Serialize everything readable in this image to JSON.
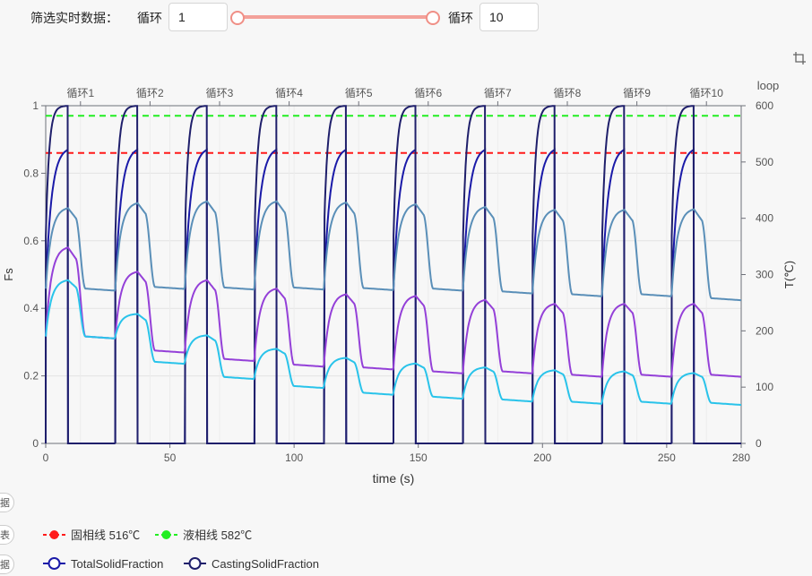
{
  "filter": {
    "label": "筛选实时数据：",
    "loop_label_start": "循环",
    "start_value": "1",
    "loop_label_end": "循环",
    "end_value": "10",
    "slider": {
      "min": 1,
      "max": 10,
      "start": 1,
      "end": 10
    }
  },
  "toolbar": {
    "crop_icon": "crop-icon"
  },
  "side_tabs": [
    "据",
    "表",
    "据"
  ],
  "colors": {
    "solidus": "#ff1a1a",
    "liquidus": "#22ee22",
    "total_solid": "#1a1aa8",
    "casting_solid": "#1f1f6b",
    "temp_upper": "#5a8fb8",
    "temp_mid": "#9440d8",
    "temp_lower": "#29c3ea",
    "slider": "#f3a19a"
  },
  "chart_data": {
    "type": "line",
    "title": "",
    "xlabel": "time (s)",
    "ylabel_left": "Fs",
    "ylabel_right": "T(℃)",
    "top_axis_label": "loop",
    "xlim": [
      0,
      280
    ],
    "ylim_left": [
      0,
      1
    ],
    "ylim_right": [
      0,
      600
    ],
    "x_ticks": [
      0,
      50,
      100,
      150,
      200,
      250,
      280
    ],
    "y_left_ticks": [
      0,
      0.2,
      0.4,
      0.6,
      0.8,
      1
    ],
    "y_right_ticks": [
      0,
      100,
      200,
      300,
      400,
      500,
      600
    ],
    "top_ticks": [
      {
        "label": "循环1",
        "x": 14
      },
      {
        "label": "循环2",
        "x": 42
      },
      {
        "label": "循环3",
        "x": 70
      },
      {
        "label": "循环4",
        "x": 98
      },
      {
        "label": "循环5",
        "x": 126
      },
      {
        "label": "循环6",
        "x": 154
      },
      {
        "label": "循环7",
        "x": 182
      },
      {
        "label": "循环8",
        "x": 210
      },
      {
        "label": "循环9",
        "x": 238
      },
      {
        "label": "循环10",
        "x": 266
      }
    ],
    "cycle_period": 28,
    "cycles": 10,
    "reference_lines": [
      {
        "name": "固相线 516℃",
        "temperature": 516,
        "fs": 0.86
      },
      {
        "name": "液相线 582℃",
        "temperature": 582,
        "fs": 0.97
      }
    ],
    "legend": [
      {
        "name": "固相线 516℃",
        "style": "dot-dash",
        "color_key": "solidus"
      },
      {
        "name": "液相线 582℃",
        "style": "dot-dash",
        "color_key": "liquidus"
      },
      {
        "name": "TotalSolidFraction",
        "style": "circle",
        "color_key": "total_solid"
      },
      {
        "name": "CastingSolidFraction",
        "style": "circle",
        "color_key": "casting_solid"
      }
    ],
    "legend_position": "bottom-left",
    "grid": true,
    "series": [
      {
        "name": "TotalSolidFraction",
        "axis": "left",
        "peak": 0.87,
        "active_window": [
          0,
          9
        ]
      },
      {
        "name": "CastingSolidFraction",
        "axis": "left",
        "peak": 1.0,
        "active_window": [
          0,
          9
        ]
      },
      {
        "axis": "right",
        "peaks": [
          418,
          427,
          430,
          430,
          428,
          425,
          420,
          415,
          415,
          416
        ],
        "baselines": [
          275,
          278,
          277,
          277,
          276,
          275,
          270,
          265,
          265,
          258
        ]
      },
      {
        "axis": "right",
        "peaks": [
          348,
          305,
          290,
          275,
          265,
          262,
          255,
          248,
          248,
          248
        ],
        "baselines": [
          190,
          165,
          150,
          140,
          135,
          128,
          128,
          122,
          122,
          122
        ]
      },
      {
        "axis": "right",
        "peaks": [
          290,
          230,
          192,
          168,
          152,
          142,
          135,
          130,
          128,
          125
        ],
        "baselines": [
          190,
          145,
          118,
          102,
          90,
          83,
          78,
          74,
          74,
          72
        ]
      }
    ]
  }
}
